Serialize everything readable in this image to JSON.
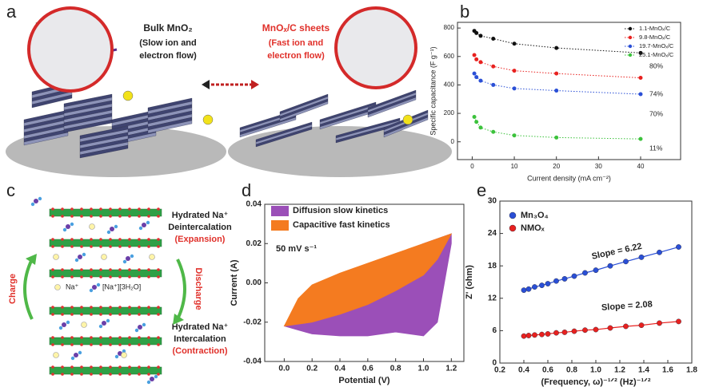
{
  "panel_a": {
    "panel": "a",
    "left_title": "Bulk MnO₂",
    "left_line1": "(Slow ion and",
    "left_line2": "electron flow)",
    "right_title": "MnOₓ/C sheets",
    "right_line1": "(Fast ion and",
    "right_line2": "electron flow)"
  },
  "panel_c": {
    "panel": "c",
    "top_line1": "Hydrated Na⁺",
    "top_line2": "Deintercalation",
    "top_line3": "(Expansion)",
    "charge": "Charge",
    "discharge": "Discharge",
    "ion_label": "Na⁺",
    "hydrated_label": "[Na⁺][3H₂O]",
    "bottom_line1": "Hydrated Na⁺",
    "bottom_line2": "Intercalation",
    "bottom_line3": "(Contraction)"
  },
  "chart_data": [
    {
      "panel": "b",
      "type": "line",
      "line_style": "dotted",
      "xlabel": "Current density (mA cm⁻²)",
      "ylabel": "Specific capacitance (F g⁻¹)",
      "x": [
        0.5,
        1,
        2,
        5,
        10,
        20,
        40
      ],
      "series": [
        {
          "name": "1.1-MnOₓ/C",
          "color": "#111111",
          "values": [
            780,
            765,
            745,
            725,
            690,
            660,
            625
          ]
        },
        {
          "name": "9.8-MnOₓ/C",
          "color": "#e8211f",
          "values": [
            610,
            580,
            560,
            530,
            500,
            480,
            450
          ]
        },
        {
          "name": "19.7-MnOₓ/C",
          "color": "#2a4fd6",
          "values": [
            480,
            455,
            430,
            400,
            375,
            360,
            335
          ]
        },
        {
          "name": "25.1-MnOₓ/C",
          "color": "#3cc23c",
          "values": [
            175,
            140,
            100,
            70,
            45,
            30,
            20
          ]
        }
      ],
      "xlim": [
        -3.5,
        49.5
      ],
      "xticks": [
        0,
        10,
        20,
        30,
        40
      ],
      "ylim": [
        -125,
        840
      ],
      "yticks": [
        0,
        200,
        400,
        600,
        800
      ],
      "legend": "upper right",
      "annotations": [
        "80%",
        "74%",
        "70%",
        "11%"
      ]
    },
    {
      "panel": "d",
      "type": "area",
      "xlabel": "Potential (V)",
      "ylabel": "Current (A)",
      "series": [
        {
          "name": "Diffusion slow kinetics",
          "color": "#9b4fb8",
          "x": [
            0,
            0.1,
            0.2,
            0.4,
            0.6,
            0.8,
            1.0,
            1.2,
            1.2,
            1.15,
            1.1,
            1.0,
            0.8,
            0.6,
            0.4,
            0.2,
            0.1,
            0
          ],
          "values": [
            -0.022,
            -0.01,
            -0.002,
            0.004,
            0.009,
            0.014,
            0.02,
            0.025,
            0.02,
            0.0,
            -0.02,
            -0.027,
            -0.025,
            -0.027,
            -0.027,
            -0.026,
            -0.024,
            -0.022
          ]
        },
        {
          "name": "Capacitive fast kinetics",
          "color": "#f47b20",
          "x": [
            0,
            0.1,
            0.2,
            0.4,
            0.6,
            0.8,
            1.0,
            1.2,
            1.1,
            1.0,
            0.8,
            0.6,
            0.4,
            0.2,
            0
          ],
          "values": [
            -0.022,
            -0.008,
            -0.001,
            0.005,
            0.01,
            0.015,
            0.02,
            0.025,
            0.012,
            0.004,
            -0.004,
            -0.011,
            -0.016,
            -0.02,
            -0.022
          ]
        }
      ],
      "xlim": [
        -0.14,
        1.29
      ],
      "xticks": [
        {
          "value": 0,
          "label": "0.0"
        },
        0.2,
        0.4,
        0.6,
        0.8,
        {
          "value": 1,
          "label": "1.0"
        },
        1.2
      ],
      "ylim": [
        -0.04,
        0.04
      ],
      "yticks": [
        -0.04,
        -0.02,
        {
          "value": 0,
          "label": "0.00"
        },
        0.02,
        0.04
      ],
      "legend": "upper left",
      "annotations": [
        "50 mV s⁻¹"
      ]
    },
    {
      "panel": "e",
      "type": "scatter",
      "trend_line": true,
      "xlabel": "(Frequency, ω)⁻¹ᐟ² (Hz)⁻¹ᐟ²",
      "ylabel": "Z' (ohm)",
      "x": [
        0.4,
        0.44,
        0.49,
        0.55,
        0.6,
        0.67,
        0.74,
        0.82,
        0.91,
        1.0,
        1.12,
        1.25,
        1.38,
        1.53,
        1.69
      ],
      "series": [
        {
          "name": "Mn₃O₄",
          "color": "#2a4fd6",
          "values": [
            13.5,
            13.7,
            14.1,
            14.4,
            14.7,
            15.2,
            15.6,
            16.1,
            16.7,
            17.2,
            18.0,
            18.8,
            19.6,
            20.5,
            21.5
          ]
        },
        {
          "name": "NMOₓ",
          "color": "#e8211f",
          "values": [
            5.0,
            5.1,
            5.2,
            5.3,
            5.4,
            5.6,
            5.7,
            5.9,
            6.1,
            6.2,
            6.5,
            6.8,
            7.0,
            7.4,
            7.7
          ]
        }
      ],
      "xlim": [
        0.2,
        1.8
      ],
      "xticks": [
        0.2,
        0.4,
        0.6,
        0.8,
        {
          "value": 1,
          "label": "1.0"
        },
        1.2,
        1.4,
        1.6,
        1.8
      ],
      "ylim": [
        0,
        30
      ],
      "yticks": [
        0,
        6,
        12,
        18,
        24,
        30
      ],
      "legend": "upper left",
      "annotations": [
        "Slope = 6.22",
        "Slope = 2.08"
      ]
    }
  ]
}
